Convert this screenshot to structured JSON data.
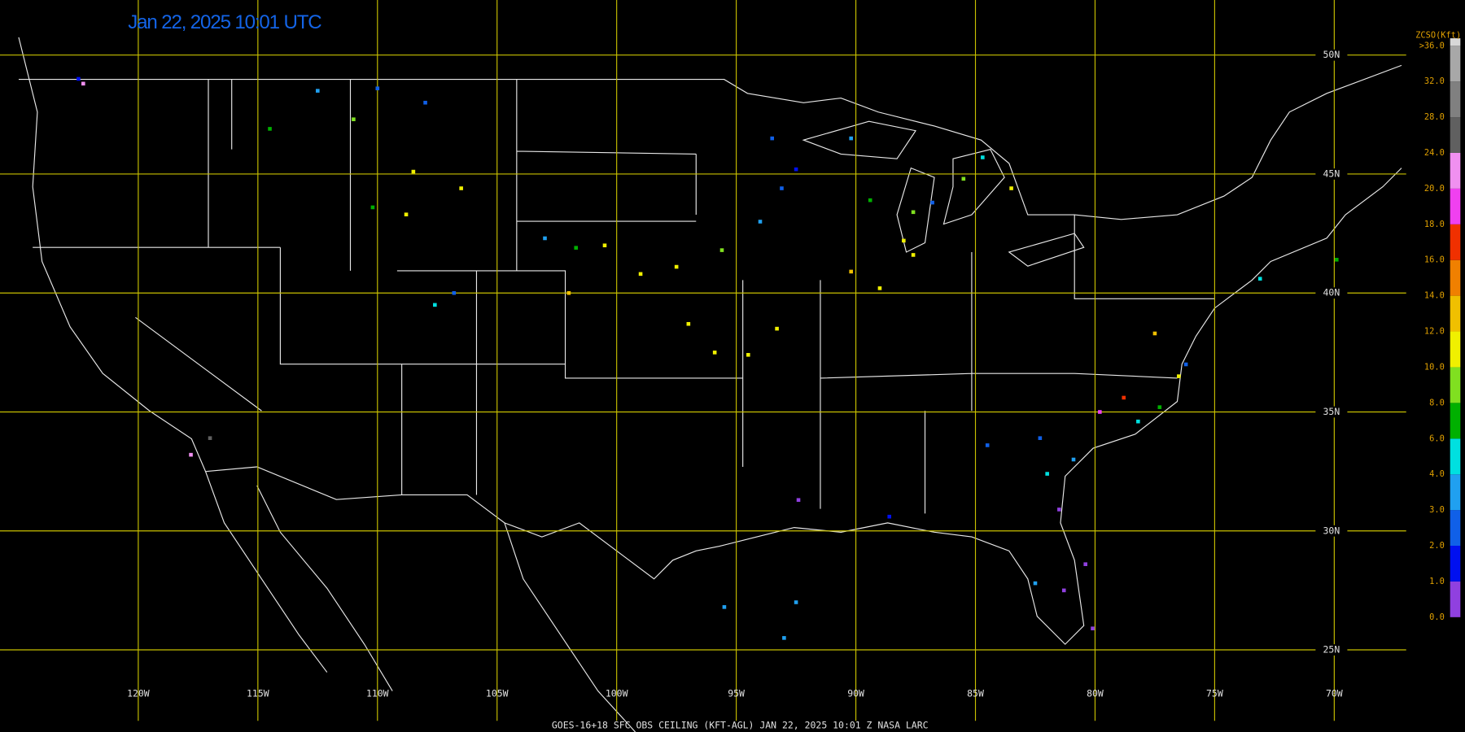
{
  "map": {
    "title": "Jan 22, 2025 10:01 UTC",
    "footer": "GOES-16+18  SFC OBS CEILING (KFT-AGL)   JAN 22, 2025 10:01 Z   NASA LARC",
    "lon_lines": [
      {
        "value": 120,
        "label": "120W"
      },
      {
        "value": 115,
        "label": "115W"
      },
      {
        "value": 110,
        "label": "110W"
      },
      {
        "value": 105,
        "label": "105W"
      },
      {
        "value": 100,
        "label": "100W"
      },
      {
        "value": 95,
        "label": "95W"
      },
      {
        "value": 90,
        "label": "90W"
      },
      {
        "value": 85,
        "label": "85W"
      },
      {
        "value": 80,
        "label": "80W"
      },
      {
        "value": 75,
        "label": "75W"
      },
      {
        "value": 70,
        "label": "70W"
      }
    ],
    "lat_lines": [
      {
        "value": 50,
        "label": "50N"
      },
      {
        "value": 45,
        "label": "45N"
      },
      {
        "value": 40,
        "label": "40N"
      },
      {
        "value": 35,
        "label": "35N"
      },
      {
        "value": 30,
        "label": "30N"
      },
      {
        "value": 25,
        "label": "25N"
      }
    ],
    "colorbar": {
      "title": "ZCSO(Kft)",
      "ticks": [
        {
          "value": 0,
          "label": "0.0"
        },
        {
          "value": 1,
          "label": "1.0"
        },
        {
          "value": 2,
          "label": "2.0"
        },
        {
          "value": 3,
          "label": "3.0"
        },
        {
          "value": 4,
          "label": "4.0"
        },
        {
          "value": 6,
          "label": "6.0"
        },
        {
          "value": 8,
          "label": "8.0"
        },
        {
          "value": 10,
          "label": "10.0"
        },
        {
          "value": 12,
          "label": "12.0"
        },
        {
          "value": 14,
          "label": "14.0"
        },
        {
          "value": 16,
          "label": "16.0"
        },
        {
          "value": 18,
          "label": "18.0"
        },
        {
          "value": 20,
          "label": "20.0"
        },
        {
          "value": 24,
          "label": "24.0"
        },
        {
          "value": 28,
          "label": "28.0"
        },
        {
          "value": 32,
          "label": "32.0"
        },
        {
          "value": 36,
          "label": ">36.0"
        }
      ],
      "colors": [
        "#9040e0",
        "#0010f0",
        "#1060e8",
        "#20a0f0",
        "#00e0e0",
        "#00b000",
        "#80e020",
        "#f0f000",
        "#f0c000",
        "#f08000",
        "#f03000",
        "#f040f0",
        "#f090f0",
        "#606060",
        "#808080",
        "#a8a8a8",
        "#d8d8d8"
      ]
    },
    "stations": [
      {
        "lon": 112.5,
        "lat": 48.5,
        "value": 3.5
      },
      {
        "lon": 110.0,
        "lat": 48.6,
        "value": 2.5
      },
      {
        "lon": 108.0,
        "lat": 48.0,
        "value": 2.5
      },
      {
        "lon": 114.5,
        "lat": 46.9,
        "value": 7
      },
      {
        "lon": 111.0,
        "lat": 47.3,
        "value": 9
      },
      {
        "lon": 108.5,
        "lat": 45.1,
        "value": 11
      },
      {
        "lon": 106.5,
        "lat": 44.4,
        "value": 11
      },
      {
        "lon": 108.8,
        "lat": 43.3,
        "value": 11
      },
      {
        "lon": 110.2,
        "lat": 43.6,
        "value": 7
      },
      {
        "lon": 106.8,
        "lat": 40.0,
        "value": 2.5
      },
      {
        "lon": 107.6,
        "lat": 39.5,
        "value": 4.5
      },
      {
        "lon": 103.0,
        "lat": 42.3,
        "value": 3.5
      },
      {
        "lon": 101.7,
        "lat": 41.9,
        "value": 7
      },
      {
        "lon": 100.5,
        "lat": 42.0,
        "value": 11
      },
      {
        "lon": 102.0,
        "lat": 40.0,
        "value": 13
      },
      {
        "lon": 99.0,
        "lat": 40.8,
        "value": 11
      },
      {
        "lon": 97.5,
        "lat": 41.1,
        "value": 11
      },
      {
        "lon": 97.0,
        "lat": 38.7,
        "value": 11
      },
      {
        "lon": 95.9,
        "lat": 37.5,
        "value": 11
      },
      {
        "lon": 94.5,
        "lat": 37.4,
        "value": 11
      },
      {
        "lon": 93.3,
        "lat": 38.5,
        "value": 11
      },
      {
        "lon": 95.6,
        "lat": 41.8,
        "value": 8.5
      },
      {
        "lon": 94.0,
        "lat": 43.0,
        "value": 3.5
      },
      {
        "lon": 93.1,
        "lat": 44.4,
        "value": 2.5
      },
      {
        "lon": 92.5,
        "lat": 45.2,
        "value": 1.5
      },
      {
        "lon": 93.5,
        "lat": 46.5,
        "value": 2.5
      },
      {
        "lon": 90.2,
        "lat": 46.5,
        "value": 3.5
      },
      {
        "lon": 89.4,
        "lat": 43.9,
        "value": 7
      },
      {
        "lon": 88.0,
        "lat": 42.2,
        "value": 11
      },
      {
        "lon": 87.6,
        "lat": 41.6,
        "value": 11
      },
      {
        "lon": 90.2,
        "lat": 40.9,
        "value": 13
      },
      {
        "lon": 89.0,
        "lat": 40.2,
        "value": 11
      },
      {
        "lon": 87.6,
        "lat": 43.4,
        "value": 8.5
      },
      {
        "lon": 86.8,
        "lat": 43.8,
        "value": 2.5
      },
      {
        "lon": 85.5,
        "lat": 44.8,
        "value": 8.5
      },
      {
        "lon": 84.7,
        "lat": 45.7,
        "value": 4.5
      },
      {
        "lon": 83.5,
        "lat": 44.4,
        "value": 11
      },
      {
        "lon": 82.3,
        "lat": 33.9,
        "value": 2.5
      },
      {
        "lon": 84.5,
        "lat": 33.6,
        "value": 2.5
      },
      {
        "lon": 82.0,
        "lat": 32.4,
        "value": 4.5
      },
      {
        "lon": 80.9,
        "lat": 33.0,
        "value": 3.5
      },
      {
        "lon": 81.5,
        "lat": 30.9,
        "value": 0.5
      },
      {
        "lon": 80.4,
        "lat": 28.6,
        "value": 0.5
      },
      {
        "lon": 81.3,
        "lat": 27.5,
        "value": 0.5
      },
      {
        "lon": 82.5,
        "lat": 27.8,
        "value": 3.5
      },
      {
        "lon": 80.1,
        "lat": 25.9,
        "value": 0.5
      },
      {
        "lon": 76.5,
        "lat": 36.5,
        "value": 11
      },
      {
        "lon": 76.2,
        "lat": 37.0,
        "value": 2.5
      },
      {
        "lon": 77.5,
        "lat": 38.3,
        "value": 13
      },
      {
        "lon": 78.8,
        "lat": 35.6,
        "value": 16.5
      },
      {
        "lon": 78.2,
        "lat": 34.6,
        "value": 4.5
      },
      {
        "lon": 79.8,
        "lat": 35.0,
        "value": 18.5
      },
      {
        "lon": 77.3,
        "lat": 35.2,
        "value": 7
      },
      {
        "lon": 92.5,
        "lat": 27.0,
        "value": 3.5
      },
      {
        "lon": 95.5,
        "lat": 26.8,
        "value": 3.5
      },
      {
        "lon": 93.0,
        "lat": 25.5,
        "value": 3.5
      },
      {
        "lon": 88.6,
        "lat": 30.6,
        "value": 1.5
      },
      {
        "lon": 92.4,
        "lat": 31.3,
        "value": 0.5
      },
      {
        "lon": 117.8,
        "lat": 33.2,
        "value": 20.5
      },
      {
        "lon": 117.0,
        "lat": 33.9,
        "value": 25
      },
      {
        "lon": 122.5,
        "lat": 49.0,
        "value": 1.5
      },
      {
        "lon": 122.3,
        "lat": 48.8,
        "value": 20.5
      },
      {
        "lon": 73.1,
        "lat": 40.6,
        "value": 4.5
      },
      {
        "lon": 69.9,
        "lat": 41.4,
        "value": 7
      }
    ]
  }
}
